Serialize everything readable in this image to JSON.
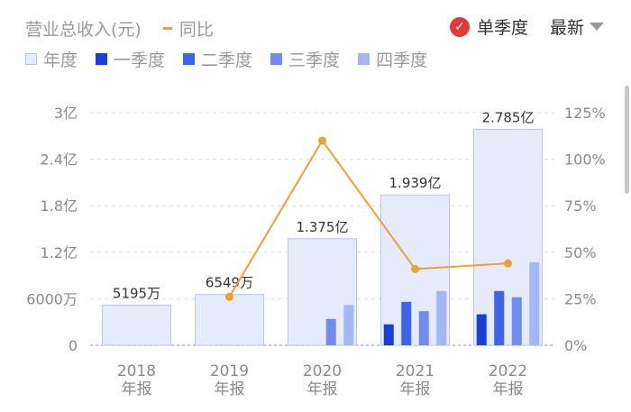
{
  "legend": {
    "revenue_label": "营业总收入(元)",
    "yoy_label": "同比",
    "items": [
      {
        "label": "年度",
        "color": "#e6ebfb",
        "border": "#b5c3f2"
      },
      {
        "label": "一季度",
        "color": "#1a3fd8"
      },
      {
        "label": "二季度",
        "color": "#3e63ec"
      },
      {
        "label": "三季度",
        "color": "#6e8cf2"
      },
      {
        "label": "四季度",
        "color": "#a3b7f6"
      }
    ]
  },
  "controls": {
    "single_quarter_label": "单季度",
    "latest_label": "最新"
  },
  "colors": {
    "annual_fill": "#e6ebfb",
    "annual_stroke": "#b9c6f2",
    "yoy_line": "#f0a030",
    "grid": "#dcdcdc",
    "axis_text": "#8a8a8a"
  },
  "chart_data": {
    "type": "bar",
    "categories": [
      "2018\n年报",
      "2019\n年报",
      "2020\n年报",
      "2021\n年报",
      "2022\n年报"
    ],
    "y_left": {
      "ticks": [
        0,
        0.6,
        1.2,
        1.8,
        2.4,
        3
      ],
      "tick_labels": [
        "0",
        "6000万",
        "1.2亿",
        "1.8亿",
        "2.4亿",
        "3亿"
      ],
      "ylim": [
        0,
        3
      ],
      "unit": "亿"
    },
    "y_right": {
      "ticks": [
        0,
        25,
        50,
        75,
        100,
        125
      ],
      "tick_labels": [
        "0%",
        "25%",
        "50%",
        "75%",
        "100%",
        "125%"
      ],
      "ylim": [
        0,
        125
      ],
      "unit": "%"
    },
    "annual": {
      "name": "年度",
      "values": [
        0.5195,
        0.6549,
        1.375,
        1.939,
        2.785
      ],
      "labels": [
        "5195万",
        "6549万",
        "1.375亿",
        "1.939亿",
        "2.785亿"
      ]
    },
    "quarters": [
      {
        "name": "一季度",
        "values": [
          null,
          null,
          null,
          0.27,
          0.4
        ]
      },
      {
        "name": "二季度",
        "values": [
          null,
          null,
          null,
          0.56,
          0.7
        ]
      },
      {
        "name": "三季度",
        "values": [
          null,
          null,
          0.34,
          0.44,
          0.62
        ]
      },
      {
        "name": "四季度",
        "values": [
          null,
          null,
          0.52,
          0.7,
          1.07
        ]
      }
    ],
    "yoy": {
      "name": "同比",
      "values": [
        null,
        26,
        110,
        41,
        44
      ]
    },
    "grid": true
  }
}
